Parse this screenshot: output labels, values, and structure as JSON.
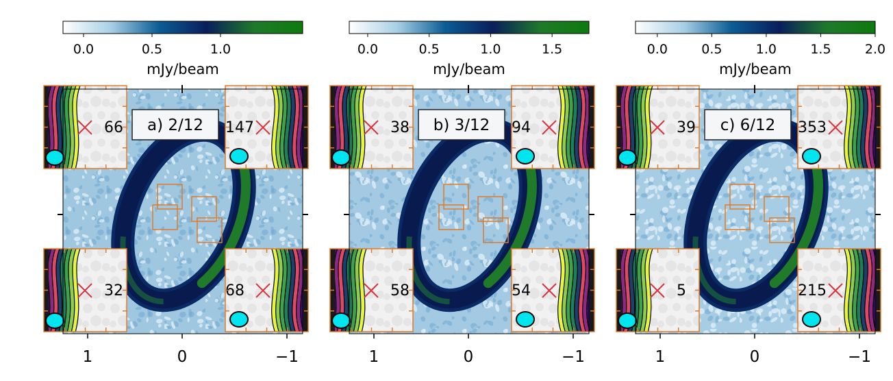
{
  "figure": {
    "panels": [
      {
        "label": "a) 2/12",
        "colorbar": {
          "label": "mJy/beam",
          "ticks": [
            "0.0",
            "0.5",
            "1.0"
          ],
          "vmin": -0.15,
          "vmax": 1.6
        },
        "x_ticks": [
          "1",
          "0",
          "−1"
        ],
        "insets": {
          "top_left": {
            "value": "66",
            "contour_side": "left",
            "beam": true
          },
          "top_right": {
            "value": "147",
            "contour_side": "right",
            "beam": true
          },
          "bottom_left": {
            "value": "32",
            "contour_side": "left",
            "beam": true
          },
          "bottom_right": {
            "value": "68",
            "contour_side": "right",
            "beam": true
          }
        }
      },
      {
        "label": "b) 3/12",
        "colorbar": {
          "label": "mJy/beam",
          "ticks": [
            "0.0",
            "0.5",
            "1.0",
            "1.5"
          ],
          "vmin": -0.15,
          "vmax": 1.8
        },
        "x_ticks": [
          "1",
          "0",
          "−1"
        ],
        "insets": {
          "top_left": {
            "value": "38",
            "contour_side": "left",
            "beam": true
          },
          "top_right": {
            "value": "94",
            "contour_side": "right",
            "beam": true
          },
          "bottom_left": {
            "value": "58",
            "contour_side": "left",
            "beam": true
          },
          "bottom_right": {
            "value": "54",
            "contour_side": "right",
            "beam": true
          }
        }
      },
      {
        "label": "c) 6/12",
        "colorbar": {
          "label": "mJy/beam",
          "ticks": [
            "0.0",
            "0.5",
            "1.0",
            "1.5",
            "2.0"
          ],
          "vmin": -0.2,
          "vmax": 2.0
        },
        "x_ticks": [
          "1",
          "0",
          "−1"
        ],
        "insets": {
          "top_left": {
            "value": "39",
            "contour_side": "left",
            "beam": true
          },
          "top_right": {
            "value": "353",
            "contour_side": "right",
            "beam": true
          },
          "bottom_left": {
            "value": "5",
            "contour_side": "left",
            "beam": true
          },
          "bottom_right": {
            "value": "215",
            "contour_side": "right",
            "beam": true
          }
        }
      }
    ]
  },
  "chart_data": [
    {
      "type": "heatmap",
      "title": "a) 2/12",
      "colorbar_label": "mJy/beam",
      "colorbar_ticks": [
        0.0,
        0.5,
        1.0
      ],
      "colorbar_range": [
        -0.15,
        1.6
      ],
      "x_ticks": [
        1,
        0,
        -1
      ],
      "inset_values": {
        "top_left": 66,
        "top_right": 147,
        "bottom_left": 32,
        "bottom_right": 68
      }
    },
    {
      "type": "heatmap",
      "title": "b) 3/12",
      "colorbar_label": "mJy/beam",
      "colorbar_ticks": [
        0.0,
        0.5,
        1.0,
        1.5
      ],
      "colorbar_range": [
        -0.15,
        1.8
      ],
      "x_ticks": [
        1,
        0,
        -1
      ],
      "inset_values": {
        "top_left": 38,
        "top_right": 94,
        "bottom_left": 58,
        "bottom_right": 54
      }
    },
    {
      "type": "heatmap",
      "title": "c) 6/12",
      "colorbar_label": "mJy/beam",
      "colorbar_ticks": [
        0.0,
        0.5,
        1.0,
        1.5,
        2.0
      ],
      "colorbar_range": [
        -0.2,
        2.0
      ],
      "x_ticks": [
        1,
        0,
        -1
      ],
      "inset_values": {
        "top_left": 39,
        "top_right": 353,
        "bottom_left": 5,
        "bottom_right": 215
      }
    }
  ],
  "colors": {
    "cmap": [
      "#ffffff",
      "#a9cfe6",
      "#0b5d96",
      "#0a1e5c",
      "#1f7a2a",
      "#0e7a0e"
    ],
    "inset_border": "#e07b28",
    "marker": "#d9333f",
    "beam": "#00e5ee",
    "contours": [
      "#000004",
      "#3b0f70",
      "#8c2981",
      "#de4968",
      "#1d3f6b",
      "#1f7f5a",
      "#3fa34d",
      "#8fce4d",
      "#e5f542"
    ]
  }
}
